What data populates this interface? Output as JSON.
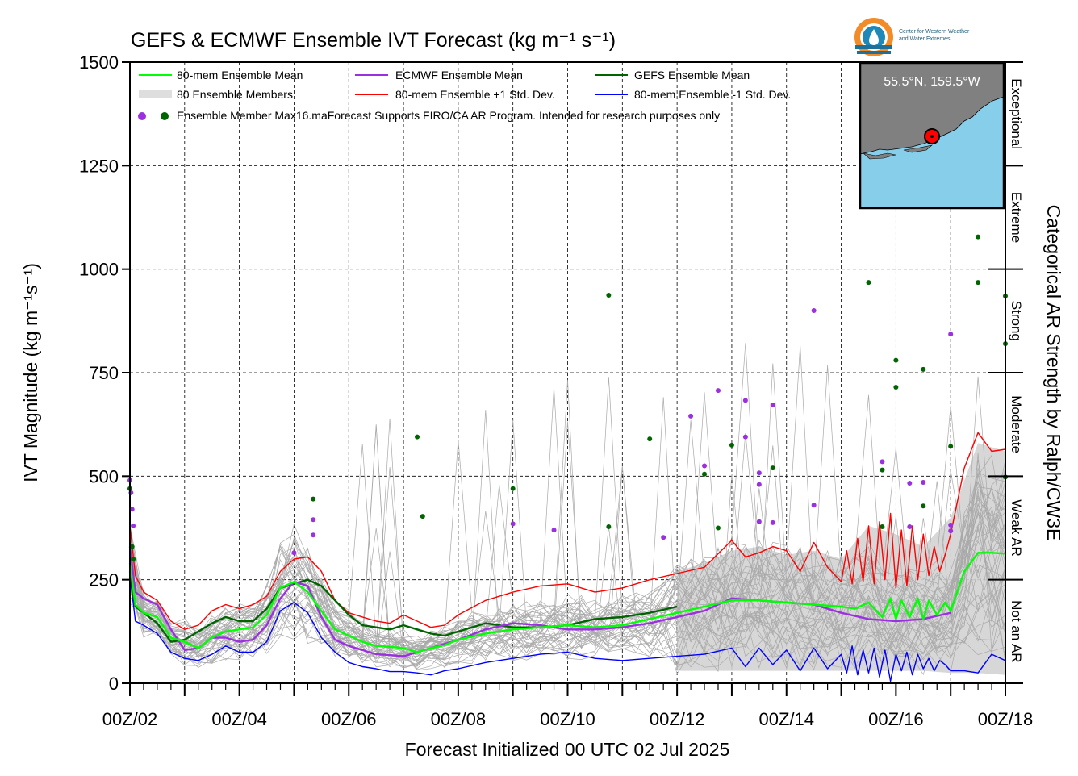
{
  "chart_data": {
    "type": "line",
    "title": "GEFS & ECMWF Ensemble IVT Forecast (kg m⁻¹ s⁻¹)",
    "xlabel": "Forecast Initialized 00 UTC 02 Jul 2025",
    "ylabel": "IVT Magnitude (kg m⁻¹s⁻¹)",
    "right_label": "Categorical AR Strength by Ralph/CW3E",
    "ylim": [
      0,
      1500
    ],
    "xlim_days": [
      2,
      18
    ],
    "yticks": [
      "0",
      "250",
      "500",
      "750",
      "1000",
      "1250",
      "1500"
    ],
    "xticks": [
      "00Z/02",
      "00Z/04",
      "00Z/06",
      "00Z/08",
      "00Z/10",
      "00Z/12",
      "00Z/14",
      "00Z/16",
      "00Z/18"
    ],
    "grid": true,
    "legend_position": "top-left",
    "categories": [
      {
        "label": "Not an AR",
        "min": 0,
        "max": 250
      },
      {
        "label": "Weak AR",
        "min": 250,
        "max": 500
      },
      {
        "label": "Moderate",
        "min": 500,
        "max": 750
      },
      {
        "label": "Strong",
        "min": 750,
        "max": 1000
      },
      {
        "label": "Extreme",
        "min": 1000,
        "max": 1250
      },
      {
        "label": "Exceptional",
        "min": 1250,
        "max": 1500
      }
    ],
    "legend": {
      "ens_mean": "80-mem Ensemble Mean",
      "members": "80 Ensemble Members",
      "ecmwf_mean": "ECMWF Ensemble Mean",
      "plus_std": "80-mem Ensemble +1 Std. Dev.",
      "gefs_mean": "GEFS Ensemble Mean",
      "minus_std": "80-mem Ensemble -1 Std. Dev.",
      "max_dots": "Ensemble Member Max",
      "note": "16.maForecast Supports FIRO/CA AR Program. Intended for research purposes only"
    },
    "colors": {
      "ens_mean": "#00ff00",
      "ecmwf_mean": "#9b30e0",
      "gefs_mean": "#006400",
      "plus_std": "#ff0000",
      "minus_std": "#0000ff",
      "members": "#a9a9a9",
      "shade": "#d3d3d3"
    },
    "series": [
      {
        "key": "ens_mean",
        "x": [
          2.0,
          2.1,
          2.25,
          2.5,
          2.75,
          3.0,
          3.25,
          3.5,
          3.75,
          4.0,
          4.25,
          4.5,
          4.75,
          5.0,
          5.25,
          5.5,
          5.75,
          6.0,
          6.25,
          6.5,
          6.75,
          7.0,
          7.25,
          7.5,
          7.75,
          8.0,
          8.5,
          9.0,
          9.5,
          10.0,
          10.5,
          11.0,
          11.5,
          12.0,
          12.5,
          13.0,
          13.5,
          14.0,
          14.5,
          15.0,
          15.25,
          15.5,
          15.75,
          15.9,
          16.0,
          16.1,
          16.25,
          16.4,
          16.5,
          16.6,
          16.75,
          16.9,
          17.0,
          17.25,
          17.5,
          17.75,
          18.0
        ],
        "y": [
          290,
          190,
          170,
          160,
          110,
          100,
          85,
          110,
          125,
          130,
          135,
          165,
          230,
          245,
          220,
          175,
          130,
          115,
          100,
          90,
          88,
          85,
          75,
          85,
          92,
          105,
          120,
          130,
          135,
          140,
          135,
          140,
          155,
          170,
          185,
          200,
          200,
          195,
          190,
          185,
          180,
          195,
          160,
          205,
          155,
          200,
          160,
          205,
          155,
          200,
          165,
          195,
          175,
          270,
          315,
          315,
          313
        ]
      },
      {
        "key": "ecmwf_mean",
        "x": [
          2.0,
          2.1,
          2.25,
          2.5,
          2.75,
          3.0,
          3.25,
          3.5,
          3.75,
          4.0,
          4.25,
          4.5,
          4.75,
          5.0,
          5.25,
          5.5,
          5.75,
          6.0,
          6.25,
          6.5,
          6.75,
          7.0,
          7.5,
          8.0,
          8.5,
          9.0,
          9.5,
          10.0,
          10.5,
          11.0,
          11.5,
          12.0,
          12.5,
          13.0,
          13.5,
          14.0,
          14.5,
          15.0,
          15.5,
          16.0,
          16.5,
          17.0
        ],
        "y": [
          330,
          220,
          205,
          190,
          130,
          80,
          85,
          110,
          110,
          100,
          105,
          140,
          205,
          245,
          235,
          160,
          105,
          90,
          80,
          70,
          68,
          65,
          85,
          105,
          130,
          145,
          140,
          130,
          130,
          135,
          145,
          160,
          175,
          205,
          200,
          195,
          190,
          170,
          155,
          150,
          155,
          170
        ]
      },
      {
        "key": "gefs_mean",
        "x": [
          2.0,
          2.1,
          2.25,
          2.5,
          2.75,
          3.0,
          3.25,
          3.5,
          3.75,
          4.0,
          4.25,
          4.5,
          4.75,
          5.0,
          5.25,
          5.5,
          5.75,
          6.0,
          6.25,
          6.5,
          6.75,
          7.0,
          7.25,
          7.5,
          7.75,
          8.0,
          8.5,
          9.0,
          9.5,
          10.0,
          10.5,
          11.0,
          11.5,
          12.0
        ],
        "y": [
          270,
          185,
          170,
          145,
          100,
          105,
          125,
          145,
          160,
          150,
          150,
          180,
          230,
          240,
          250,
          235,
          200,
          165,
          140,
          135,
          130,
          140,
          130,
          120,
          115,
          125,
          145,
          135,
          135,
          140,
          155,
          160,
          170,
          185
        ]
      },
      {
        "key": "plus_std",
        "x": [
          2.0,
          2.1,
          2.25,
          2.5,
          2.75,
          3.0,
          3.25,
          3.5,
          3.75,
          4.0,
          4.25,
          4.5,
          4.75,
          5.0,
          5.25,
          5.5,
          5.75,
          6.0,
          6.25,
          6.5,
          6.75,
          7.0,
          7.25,
          7.5,
          7.75,
          8.0,
          8.5,
          9.0,
          9.5,
          10.0,
          10.5,
          11.0,
          11.5,
          12.0,
          12.5,
          13.0,
          13.25,
          13.5,
          13.75,
          14.0,
          14.25,
          14.5,
          14.75,
          15.0,
          15.1,
          15.2,
          15.3,
          15.4,
          15.5,
          15.6,
          15.7,
          15.8,
          15.9,
          16.0,
          16.1,
          16.2,
          16.3,
          16.4,
          16.5,
          16.6,
          16.7,
          16.8,
          16.9,
          17.0,
          17.25,
          17.5,
          17.75,
          18.0
        ],
        "y": [
          380,
          260,
          220,
          200,
          150,
          130,
          140,
          175,
          190,
          180,
          190,
          210,
          270,
          300,
          305,
          270,
          200,
          170,
          160,
          150,
          145,
          165,
          150,
          135,
          140,
          165,
          200,
          220,
          235,
          240,
          220,
          230,
          250,
          265,
          280,
          345,
          305,
          315,
          330,
          320,
          270,
          340,
          280,
          245,
          320,
          240,
          350,
          245,
          380,
          240,
          390,
          250,
          410,
          230,
          370,
          235,
          380,
          250,
          360,
          260,
          330,
          270,
          310,
          360,
          520,
          605,
          560,
          565
        ]
      },
      {
        "key": "minus_std",
        "x": [
          2.0,
          2.1,
          2.25,
          2.5,
          2.75,
          3.0,
          3.25,
          3.5,
          3.75,
          4.0,
          4.25,
          4.5,
          4.75,
          5.0,
          5.25,
          5.5,
          5.75,
          6.0,
          6.25,
          6.5,
          6.75,
          7.0,
          7.25,
          7.5,
          7.75,
          8.0,
          8.5,
          9.0,
          9.5,
          10.0,
          10.5,
          11.0,
          11.5,
          12.0,
          12.5,
          13.0,
          13.25,
          13.5,
          13.75,
          14.0,
          14.25,
          14.5,
          14.75,
          15.0,
          15.1,
          15.2,
          15.3,
          15.4,
          15.5,
          15.6,
          15.7,
          15.8,
          15.9,
          16.0,
          16.1,
          16.2,
          16.3,
          16.4,
          16.5,
          16.6,
          16.7,
          16.8,
          16.9,
          17.0,
          17.25,
          17.5,
          17.75,
          18.0
        ],
        "y": [
          260,
          150,
          140,
          120,
          75,
          60,
          55,
          70,
          90,
          75,
          75,
          100,
          175,
          195,
          170,
          110,
          75,
          50,
          40,
          35,
          28,
          28,
          25,
          20,
          30,
          35,
          50,
          60,
          70,
          75,
          60,
          55,
          60,
          65,
          70,
          85,
          40,
          85,
          45,
          80,
          30,
          85,
          35,
          70,
          25,
          90,
          20,
          80,
          25,
          85,
          15,
          80,
          5,
          70,
          30,
          75,
          20,
          70,
          35,
          60,
          30,
          55,
          45,
          30,
          30,
          25,
          70,
          55
        ]
      },
      {
        "key": "shade_lower",
        "x": [
          12.0,
          12.5,
          13.0,
          13.5,
          14.0,
          14.5,
          15.0,
          15.5,
          16.0,
          16.5,
          17.0,
          17.5,
          18.0
        ],
        "y": [
          30,
          30,
          30,
          30,
          30,
          30,
          30,
          30,
          30,
          30,
          25,
          25,
          20
        ]
      },
      {
        "key": "shade_upper",
        "x": [
          12.0,
          12.5,
          13.0,
          13.5,
          14.0,
          14.5,
          15.0,
          15.5,
          16.0,
          16.5,
          17.0,
          17.5,
          18.0
        ],
        "y": [
          270,
          290,
          320,
          330,
          310,
          320,
          300,
          380,
          360,
          330,
          400,
          580,
          560
        ]
      }
    ],
    "max_points": {
      "ecmwf": [
        [
          2.0,
          490
        ],
        [
          2.02,
          460
        ],
        [
          2.04,
          420
        ],
        [
          2.06,
          380
        ],
        [
          5.0,
          315
        ],
        [
          5.35,
          395
        ],
        [
          5.35,
          358
        ],
        [
          9.0,
          385
        ],
        [
          9.75,
          370
        ],
        [
          11.75,
          352
        ],
        [
          12.25,
          645
        ],
        [
          12.5,
          525
        ],
        [
          12.75,
          707
        ],
        [
          13.25,
          683
        ],
        [
          13.25,
          595
        ],
        [
          13.5,
          508
        ],
        [
          13.5,
          480
        ],
        [
          13.5,
          390
        ],
        [
          13.75,
          672
        ],
        [
          13.75,
          388
        ],
        [
          14.5,
          900
        ],
        [
          14.5,
          430
        ],
        [
          15.75,
          535
        ],
        [
          16.25,
          483
        ],
        [
          16.25,
          378
        ],
        [
          16.5,
          485
        ],
        [
          17.0,
          843
        ],
        [
          17.0,
          382
        ],
        [
          17.0,
          368
        ]
      ],
      "gefs": [
        [
          2.0,
          470
        ],
        [
          2.04,
          330
        ],
        [
          2.06,
          300
        ],
        [
          5.35,
          445
        ],
        [
          7.25,
          595
        ],
        [
          7.35,
          403
        ],
        [
          9.0,
          470
        ],
        [
          10.75,
          937
        ],
        [
          10.75,
          378
        ],
        [
          11.5,
          590
        ],
        [
          12.5,
          505
        ],
        [
          12.75,
          375
        ],
        [
          13.0,
          575
        ],
        [
          13.75,
          520
        ],
        [
          15.5,
          968
        ],
        [
          15.75,
          515
        ],
        [
          15.75,
          378
        ],
        [
          16.0,
          780
        ],
        [
          16.0,
          715
        ],
        [
          16.5,
          758
        ],
        [
          16.5,
          428
        ],
        [
          17.0,
          572
        ],
        [
          17.5,
          1078
        ],
        [
          17.5,
          968
        ],
        [
          18.0,
          935
        ],
        [
          18.0,
          820
        ],
        [
          18.0,
          498
        ]
      ]
    },
    "inset_map": {
      "label": "55.5°N, 159.5°W"
    },
    "logo": {
      "line1": "Center for Western Weather",
      "line2": "and Water Extremes"
    }
  }
}
